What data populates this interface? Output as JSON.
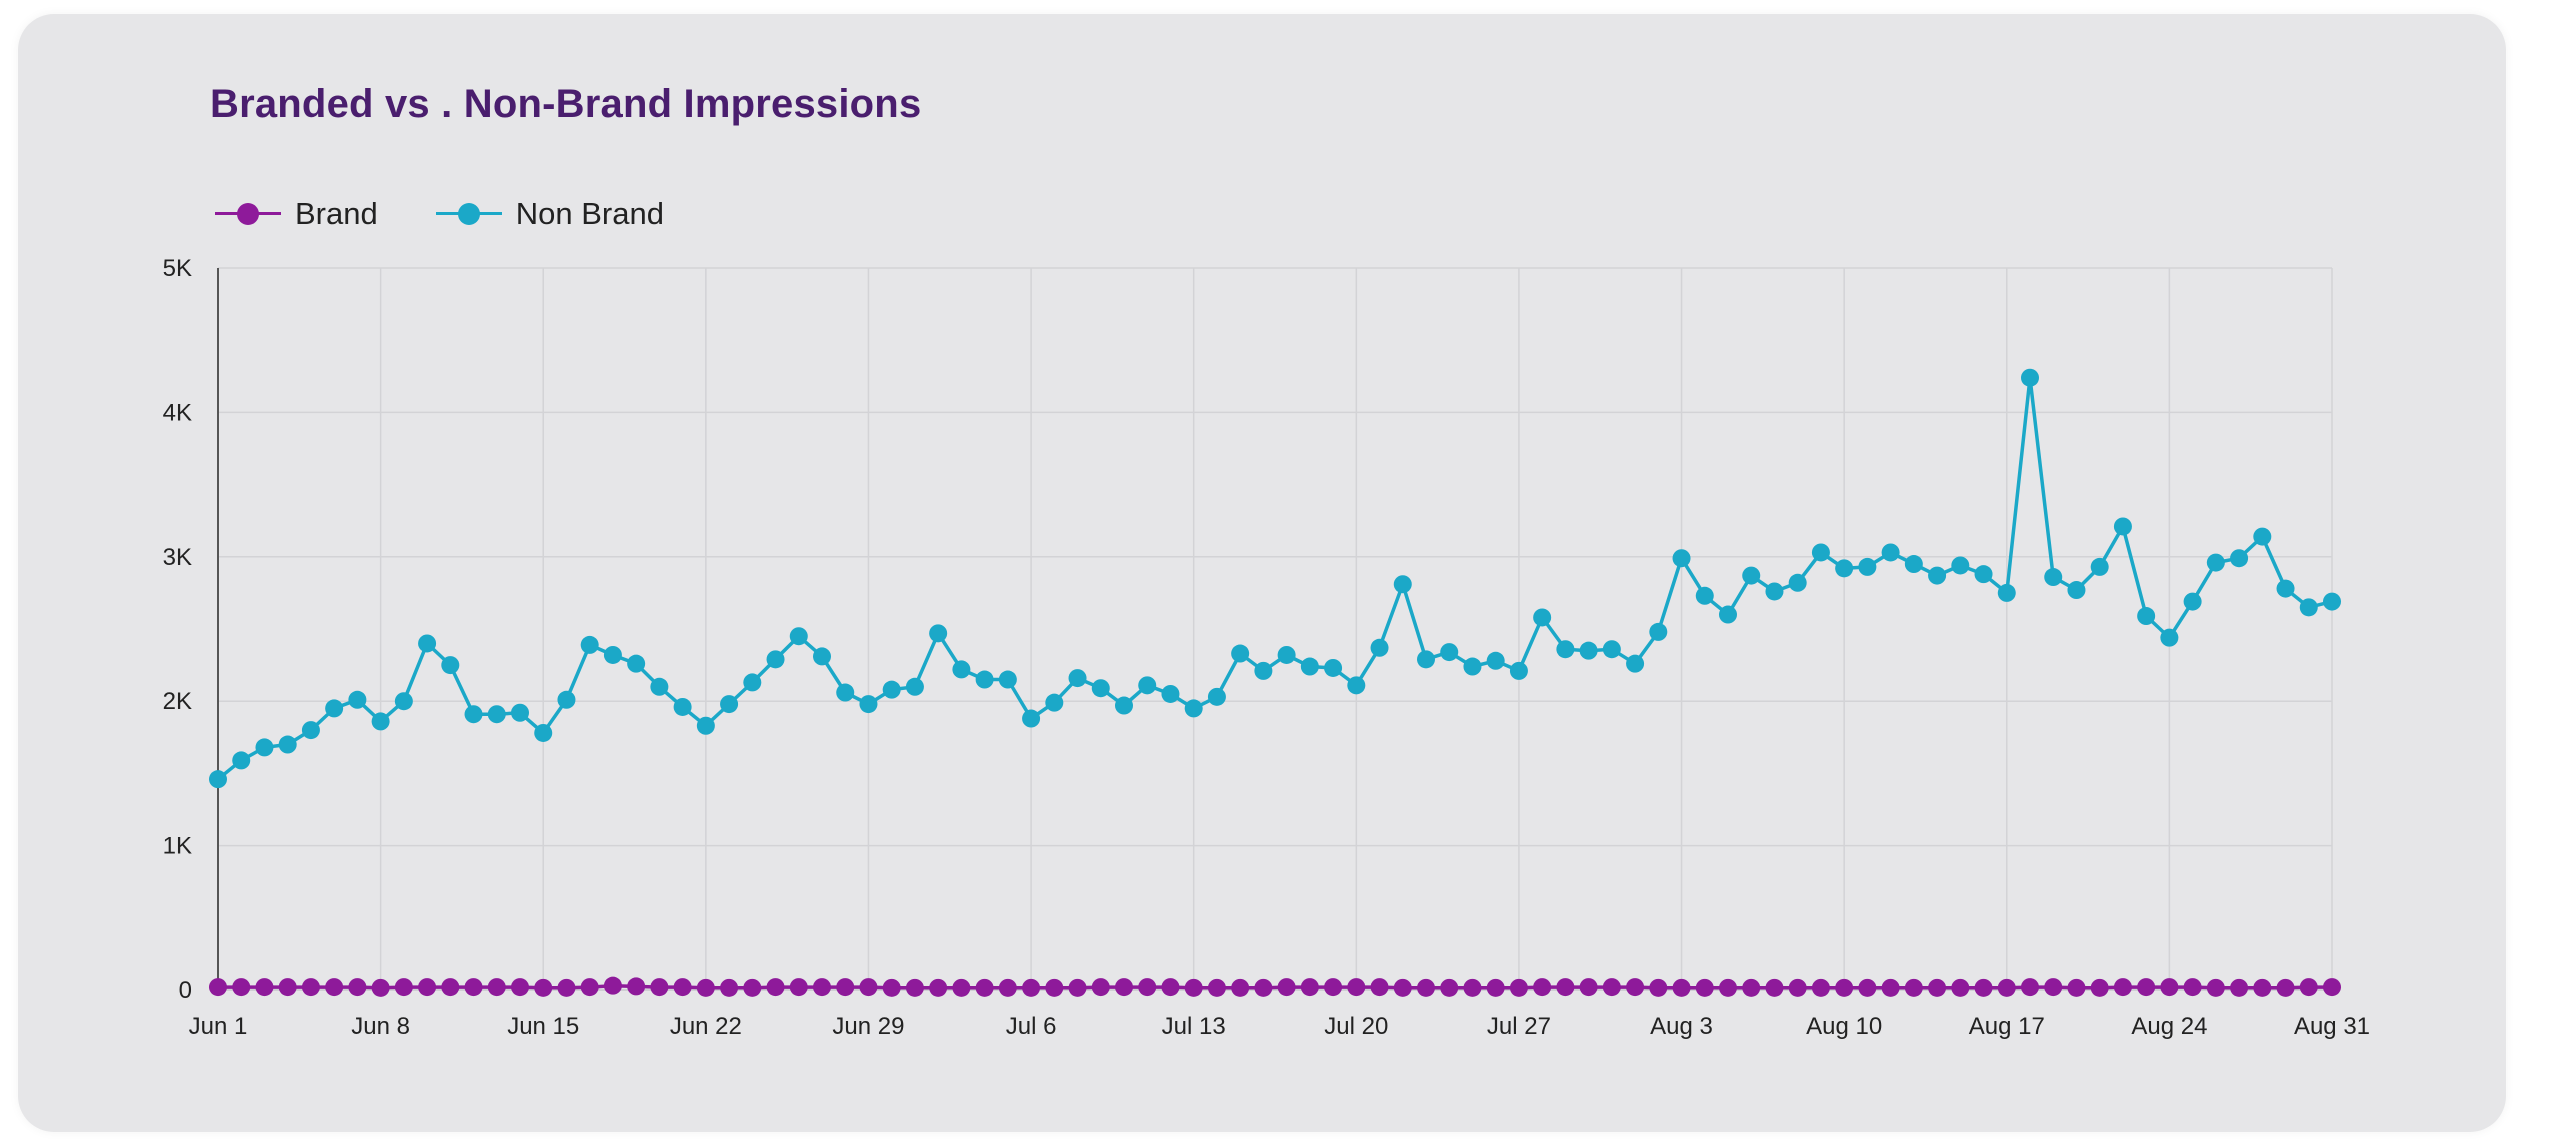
{
  "chart_data": {
    "type": "line",
    "title": "Branded vs . Non-Brand Impressions",
    "legend_position": "top-left",
    "grid": true,
    "x_ticks": [
      "Jun 1",
      "Jun 8",
      "Jun 15",
      "Jun 22",
      "Jun 29",
      "Jul 6",
      "Jul 13",
      "Jul 20",
      "Jul 27",
      "Aug 3",
      "Aug 10",
      "Aug 17",
      "Aug 24",
      "Aug 31"
    ],
    "y_ticks": [
      "0",
      "1K",
      "2K",
      "3K",
      "4K",
      "5K"
    ],
    "ylim": [
      0,
      5000
    ],
    "x_range": [
      "Jun 1",
      "Aug 31"
    ],
    "series": [
      {
        "name": "Brand",
        "color": "#8e1a9a",
        "values": [
          20,
          20,
          20,
          20,
          20,
          20,
          20,
          15,
          20,
          20,
          20,
          20,
          20,
          20,
          15,
          15,
          20,
          30,
          25,
          20,
          20,
          15,
          15,
          15,
          20,
          20,
          20,
          20,
          20,
          15,
          15,
          15,
          15,
          15,
          15,
          15,
          15,
          15,
          20,
          20,
          20,
          20,
          15,
          15,
          15,
          15,
          20,
          20,
          20,
          20,
          20,
          15,
          15,
          15,
          15,
          15,
          15,
          20,
          20,
          20,
          20,
          20,
          15,
          15,
          15,
          15,
          15,
          15,
          15,
          15,
          15,
          15,
          15,
          15,
          15,
          15,
          15,
          15,
          20,
          20,
          15,
          15,
          20,
          20,
          20,
          20,
          15,
          15,
          15,
          15,
          20,
          20
        ]
      },
      {
        "name": "Non Brand",
        "color": "#1ba8c8",
        "values": [
          1460,
          1590,
          1680,
          1700,
          1800,
          1950,
          2010,
          1860,
          2000,
          2400,
          2250,
          1910,
          1910,
          1920,
          1780,
          2010,
          2390,
          2320,
          2260,
          2100,
          1960,
          1830,
          1980,
          2130,
          2290,
          2450,
          2310,
          2060,
          1980,
          2080,
          2100,
          2470,
          2220,
          2150,
          2150,
          1880,
          1990,
          2160,
          2090,
          1970,
          2110,
          2050,
          1950,
          2030,
          2330,
          2210,
          2320,
          2240,
          2230,
          2110,
          2370,
          2810,
          2290,
          2340,
          2240,
          2280,
          2210,
          2580,
          2360,
          2350,
          2360,
          2260,
          2480,
          2990,
          2730,
          2600,
          2870,
          2760,
          2820,
          3030,
          2920,
          2930,
          3030,
          2950,
          2870,
          2940,
          2880,
          2750,
          4240,
          2860,
          2770,
          2930,
          3210,
          2590,
          2440,
          2690,
          2960,
          2990,
          3140,
          2780,
          2650,
          2690
        ]
      }
    ]
  }
}
